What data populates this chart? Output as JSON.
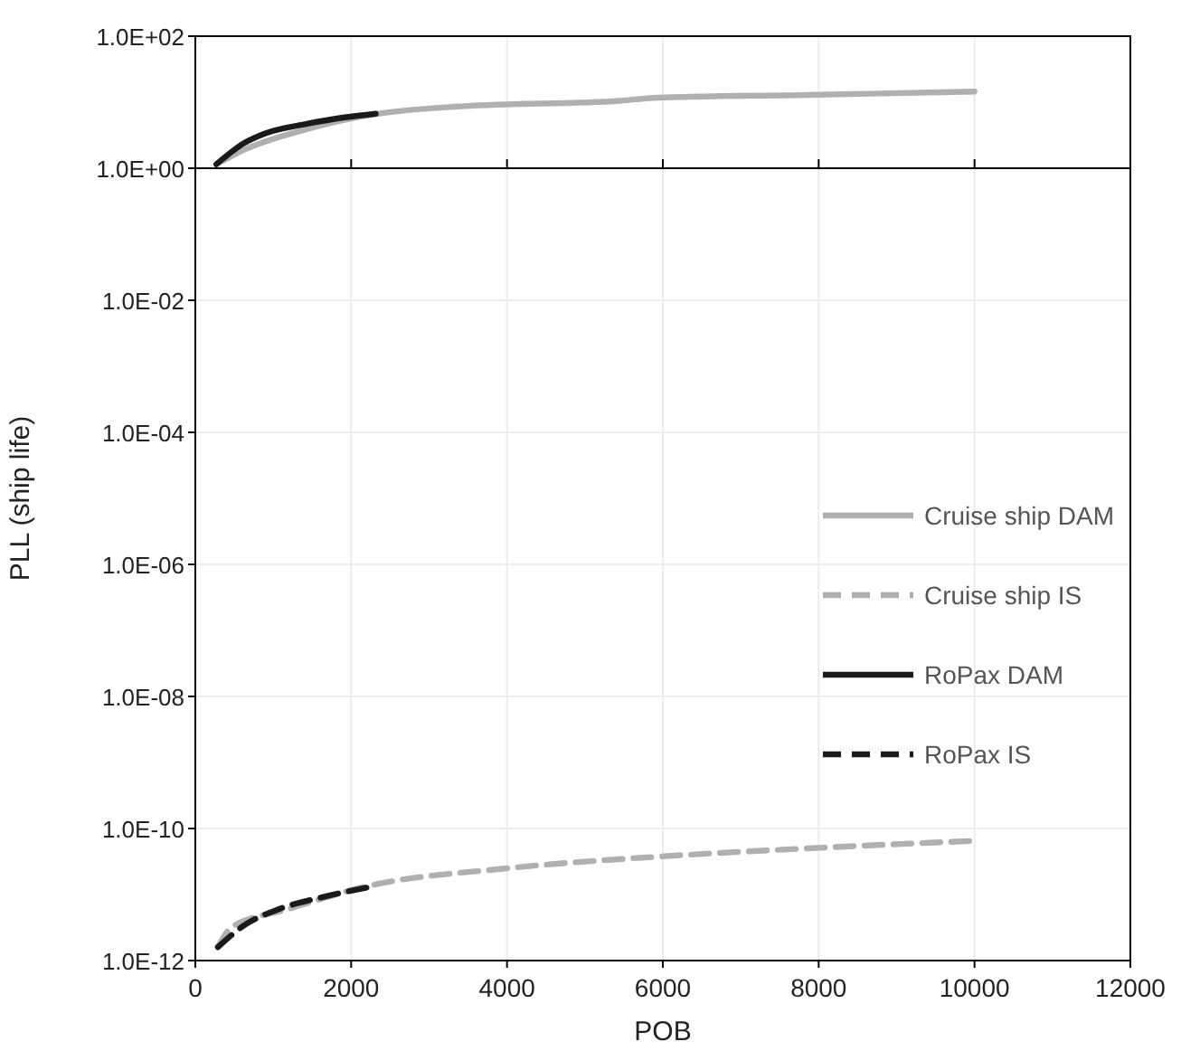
{
  "chart_data": {
    "type": "line",
    "xlabel": "POB",
    "ylabel": "PLL (ship life)",
    "log": "y",
    "xlim": [
      0,
      12000
    ],
    "xticks": [
      0,
      2000,
      4000,
      6000,
      8000,
      10000,
      12000
    ],
    "ylim": [
      1e-12,
      100
    ],
    "yticks": [
      {
        "value": 1e-12,
        "label": "1.0E-12"
      },
      {
        "value": 1e-10,
        "label": "1.0E-10"
      },
      {
        "value": 1e-08,
        "label": "1.0E-08"
      },
      {
        "value": 1e-06,
        "label": "1.0E-06"
      },
      {
        "value": 0.0001,
        "label": "1.0E-04"
      },
      {
        "value": 0.01,
        "label": "1.0E-02"
      },
      {
        "value": 1,
        "label": "1.0E+00"
      },
      {
        "value": 100,
        "label": "1.0E+02"
      }
    ],
    "grid": true,
    "legend": "right",
    "ref_lines": [
      {
        "axis": "y",
        "value": 1,
        "color": "#000000"
      }
    ],
    "series": [
      {
        "name": "Cruise ship DAM",
        "color": "#b0b0b0",
        "line_style": "solid",
        "x": [
          270,
          625,
          1430,
          2315,
          3440,
          5450,
          5930,
          7860,
          10000
        ],
        "values": [
          1.15,
          1.9,
          3.9,
          6.6,
          8.7,
          10.5,
          11.7,
          12.9,
          14.5
        ]
      },
      {
        "name": "Cruise ship IS",
        "color": "#b0b0b0",
        "line_style": "dashed",
        "x": [
          290,
          465,
          1190,
          2160,
          4010,
          6020,
          8000,
          10000
        ],
        "values": [
          1.6e-12,
          3.2e-12,
          6e-12,
          1.3e-11,
          2.5e-11,
          3.8e-11,
          5.1e-11,
          6.5e-11
        ]
      },
      {
        "name": "RoPax DAM",
        "color": "#1a1a1a",
        "line_style": "solid",
        "x": [
          270,
          625,
          905,
          1430,
          1915,
          2315
        ],
        "values": [
          1.15,
          2.4,
          3.4,
          4.7,
          5.9,
          6.7
        ]
      },
      {
        "name": "RoPax IS",
        "color": "#1a1a1a",
        "line_style": "dashed",
        "x": [
          290,
          625,
          1070,
          1610,
          2315
        ],
        "values": [
          1.6e-12,
          3.4e-12,
          6e-12,
          9e-12,
          1.35e-11
        ]
      }
    ]
  }
}
